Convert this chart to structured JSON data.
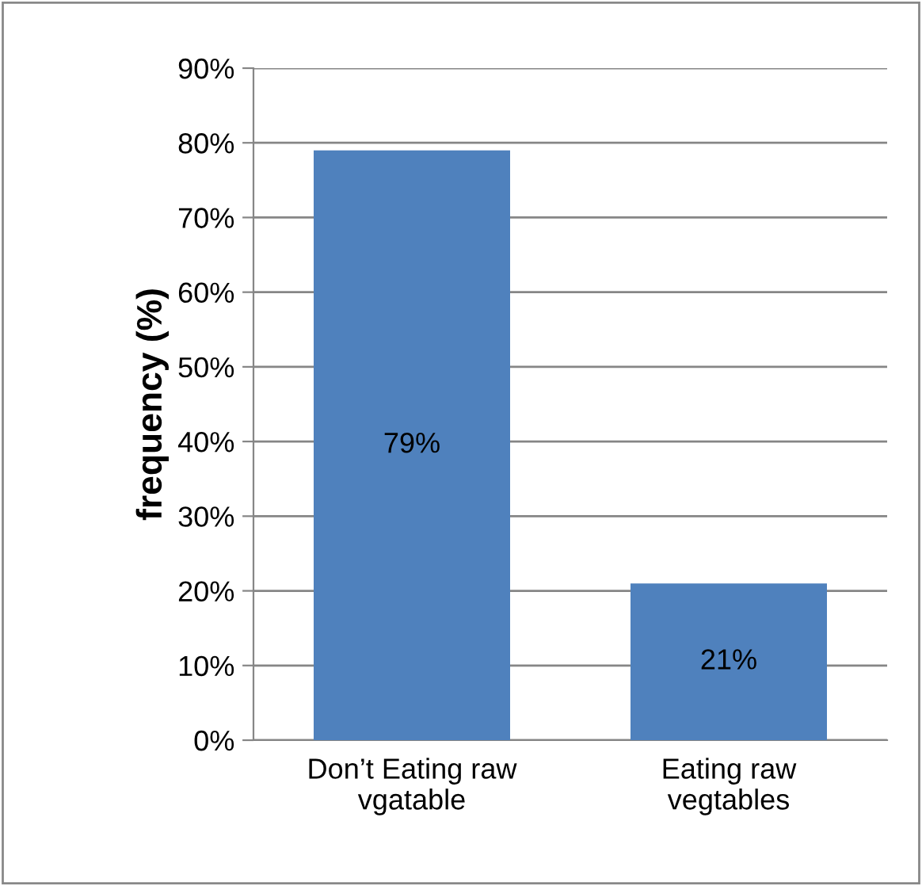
{
  "chart_data": {
    "type": "bar",
    "ylabel": "frequency (%)",
    "categories": [
      "Don’t Eating raw\nvgatable",
      "Eating raw\nvegtables"
    ],
    "series": [
      {
        "color": "#4f81bd",
        "values": [
          79,
          21
        ]
      }
    ],
    "value_labels": [
      "79%",
      "21%"
    ],
    "ylim": [
      0,
      90
    ],
    "yticks": [
      {
        "value": 0,
        "label": "0%"
      },
      {
        "value": 10,
        "label": "10%"
      },
      {
        "value": 20,
        "label": "20%"
      },
      {
        "value": 30,
        "label": "30%"
      },
      {
        "value": 40,
        "label": "40%"
      },
      {
        "value": 50,
        "label": "50%"
      },
      {
        "value": 60,
        "label": "60%"
      },
      {
        "value": 70,
        "label": "70%"
      },
      {
        "value": 80,
        "label": "80%"
      },
      {
        "value": 90,
        "label": "90%"
      }
    ],
    "grid": "y",
    "legend": false
  }
}
